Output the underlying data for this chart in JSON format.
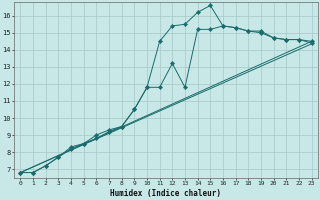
{
  "xlabel": "Humidex (Indice chaleur)",
  "background_color": "#c8e8e8",
  "grid_color": "#a8c8c8",
  "line_color": "#1a6b6b",
  "xlim": [
    -0.5,
    23.5
  ],
  "ylim": [
    6.5,
    16.8
  ],
  "xticks": [
    0,
    1,
    2,
    3,
    4,
    5,
    6,
    7,
    8,
    9,
    10,
    11,
    12,
    13,
    14,
    15,
    16,
    17,
    18,
    19,
    20,
    21,
    22,
    23
  ],
  "yticks": [
    7,
    8,
    9,
    10,
    11,
    12,
    13,
    14,
    15,
    16
  ],
  "line1_x": [
    0,
    1,
    2,
    3,
    4,
    5,
    6,
    7,
    8,
    9,
    10,
    11,
    12,
    13,
    14,
    15,
    16,
    17,
    18,
    19,
    20,
    21,
    22,
    23
  ],
  "line1_y": [
    6.8,
    6.8,
    7.2,
    7.7,
    8.2,
    8.5,
    8.8,
    9.2,
    9.5,
    10.5,
    11.8,
    14.5,
    15.4,
    15.5,
    16.2,
    16.6,
    15.4,
    15.3,
    15.1,
    15.1,
    14.7,
    14.6,
    14.6,
    14.4
  ],
  "line2_x": [
    0,
    1,
    2,
    3,
    4,
    5,
    6,
    7,
    8,
    9,
    10,
    11,
    12,
    13,
    14,
    15,
    16,
    17,
    18,
    19,
    20,
    21,
    22,
    23
  ],
  "line2_y": [
    6.8,
    6.8,
    7.2,
    7.7,
    8.3,
    8.5,
    9.0,
    9.3,
    9.5,
    10.5,
    11.8,
    11.8,
    13.2,
    11.8,
    15.2,
    15.2,
    15.4,
    15.3,
    15.1,
    15.0,
    14.7,
    14.6,
    14.6,
    14.5
  ],
  "line3_x": [
    0,
    23
  ],
  "line3_y": [
    6.8,
    14.35
  ],
  "line4_x": [
    0,
    23
  ],
  "line4_y": [
    6.8,
    14.5
  ]
}
